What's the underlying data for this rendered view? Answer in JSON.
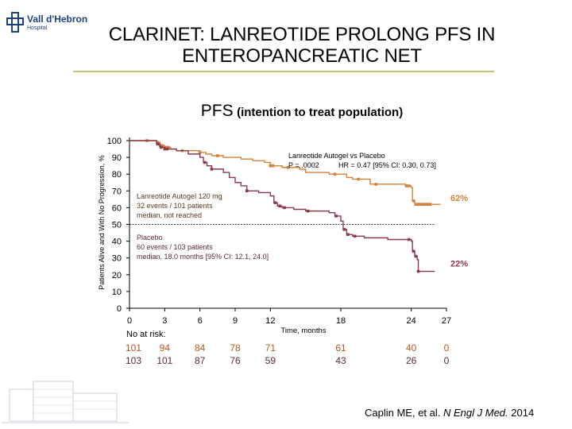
{
  "header": {
    "logo_text": "Vall d'Hebron",
    "logo_sub": "Hospital",
    "title_line1": "CLARINET: LANREOTIDE PROLONG PFS IN",
    "title_line2": "ENTEROPANCREATIC NET",
    "subtitle_main": "PFS",
    "subtitle_sub": "(intention to treat population)"
  },
  "chart_data": {
    "type": "line",
    "ylabel": "Patients Alive and With No Progression, %",
    "xlabel": "Time, months",
    "xlim": [
      0,
      27
    ],
    "ylim": [
      0,
      100
    ],
    "x_ticks": [
      "0",
      "3",
      "6",
      "9",
      "12",
      "18",
      "24",
      "27"
    ],
    "x_tick_values": [
      0,
      3,
      6,
      9,
      12,
      18,
      24,
      27
    ],
    "y_ticks": [
      "0",
      "10",
      "20",
      "30",
      "40",
      "50",
      "60",
      "70",
      "80",
      "90",
      "100"
    ],
    "y_tick_values": [
      0,
      10,
      20,
      30,
      40,
      50,
      60,
      70,
      80,
      90,
      100
    ],
    "reference_line": 50,
    "series": [
      {
        "name": "Lanreotide Autogel 120 mg",
        "color": "#d4813a",
        "end_label": "62%",
        "points": [
          [
            0,
            100
          ],
          [
            1.0,
            100
          ],
          [
            2.0,
            100
          ],
          [
            2.3,
            99
          ],
          [
            2.6,
            97
          ],
          [
            3.0,
            96
          ],
          [
            3.5,
            95
          ],
          [
            4.0,
            94
          ],
          [
            5.0,
            94
          ],
          [
            6.0,
            93
          ],
          [
            6.5,
            92
          ],
          [
            7.0,
            91
          ],
          [
            8.0,
            90
          ],
          [
            9.0,
            90
          ],
          [
            9.5,
            89
          ],
          [
            10.5,
            88
          ],
          [
            11.0,
            88
          ],
          [
            11.5,
            87
          ],
          [
            12.0,
            85
          ],
          [
            12.5,
            85
          ],
          [
            13.0,
            84
          ],
          [
            14.0,
            84
          ],
          [
            14.5,
            83
          ],
          [
            15.0,
            81
          ],
          [
            16.0,
            81
          ],
          [
            16.5,
            81
          ],
          [
            17.0,
            80
          ],
          [
            18.0,
            80
          ],
          [
            18.5,
            78
          ],
          [
            19.0,
            77
          ],
          [
            20.5,
            74
          ],
          [
            22.0,
            74
          ],
          [
            23.5,
            73
          ],
          [
            24.0,
            72
          ],
          [
            24.1,
            64
          ],
          [
            24.3,
            62
          ],
          [
            25.5,
            62
          ],
          [
            26.5,
            62
          ]
        ],
        "censor_x": [
          1.5,
          2.4,
          2.6,
          2.8,
          3.1,
          3.3,
          4.5,
          6.0,
          7.5,
          12.0,
          12.2,
          13.5,
          17.5,
          19.5,
          21.0,
          23.6,
          23.8,
          24.2,
          24.4,
          24.6,
          24.8,
          25.0,
          25.2,
          25.4,
          25.6
        ]
      },
      {
        "name": "Placebo",
        "color": "#8b3a4a",
        "end_label": "22%",
        "points": [
          [
            0,
            100
          ],
          [
            1.0,
            100
          ],
          [
            2.0,
            100
          ],
          [
            2.3,
            98
          ],
          [
            2.6,
            96
          ],
          [
            3.0,
            95
          ],
          [
            4.0,
            94
          ],
          [
            5.0,
            92
          ],
          [
            6.0,
            90
          ],
          [
            6.3,
            87
          ],
          [
            6.6,
            85
          ],
          [
            7.0,
            83
          ],
          [
            8.0,
            81
          ],
          [
            8.5,
            78
          ],
          [
            9.0,
            75
          ],
          [
            9.5,
            73
          ],
          [
            10.0,
            70
          ],
          [
            11.0,
            69
          ],
          [
            12.0,
            67
          ],
          [
            12.3,
            63
          ],
          [
            12.6,
            61
          ],
          [
            13.0,
            60
          ],
          [
            14.0,
            59
          ],
          [
            15.0,
            58
          ],
          [
            16.0,
            58
          ],
          [
            17.0,
            57
          ],
          [
            17.5,
            55
          ],
          [
            18.0,
            52
          ],
          [
            18.2,
            47
          ],
          [
            18.5,
            44
          ],
          [
            19.0,
            43
          ],
          [
            20.0,
            42
          ],
          [
            22.0,
            41
          ],
          [
            24.0,
            40
          ],
          [
            24.1,
            34
          ],
          [
            24.3,
            31
          ],
          [
            24.5,
            29
          ],
          [
            24.6,
            22
          ],
          [
            26.0,
            22
          ]
        ],
        "censor_x": [
          2.4,
          2.7,
          3.0,
          3.2,
          6.4,
          7.0,
          10.0,
          12.4,
          12.8,
          13.2,
          15.2,
          17.6,
          18.3,
          18.6,
          19.2,
          23.8,
          24.2,
          24.4,
          24.6
        ]
      }
    ],
    "annotations": {
      "comparison_title": "Lanreotide Autogel vs Placebo",
      "p_value": "P = .0002",
      "hazard_ratio": "HR = 0.47 [95% CI: 0.30, 0.73]",
      "lanreotide_label": "Lanreotide Autogel 120 mg",
      "lanreotide_events": "32 events / 101 patients",
      "lanreotide_median": "median, not reached",
      "placebo_label": "Placebo",
      "placebo_events": "60 events / 103 patients",
      "placebo_median": "median, 18.0 months [95% CI: 12.1, 24.0]"
    },
    "at_risk": {
      "label": "No at risk:",
      "lanreotide": [
        "101",
        "94",
        "84",
        "78",
        "71",
        "61",
        "40",
        "0"
      ],
      "placebo": [
        "103",
        "101",
        "87",
        "76",
        "59",
        "43",
        "26",
        "0"
      ]
    }
  },
  "citation": {
    "authors": "Caplin ME, et al.",
    "journal": "N Engl J Med.",
    "year": "2014"
  }
}
